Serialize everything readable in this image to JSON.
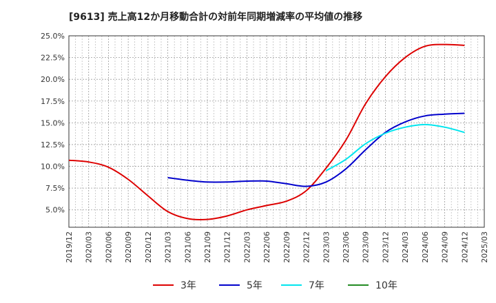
{
  "chart_data": {
    "type": "line",
    "title": "[9613]  売上高12か月移動合計の対前年同期増減率の平均値の推移",
    "xlabel": "",
    "ylabel": "",
    "ylim": [
      3.0,
      25.0
    ],
    "yticks": [
      "5.0%",
      "7.5%",
      "10.0%",
      "12.5%",
      "15.0%",
      "17.5%",
      "20.0%",
      "22.5%",
      "25.0%"
    ],
    "ytick_values": [
      5.0,
      7.5,
      10.0,
      12.5,
      15.0,
      17.5,
      20.0,
      22.5,
      25.0
    ],
    "xticks": [
      "2019/12",
      "2020/03",
      "2020/06",
      "2020/09",
      "2020/12",
      "2021/03",
      "2021/06",
      "2021/09",
      "2021/12",
      "2022/03",
      "2022/06",
      "2022/09",
      "2022/12",
      "2023/03",
      "2023/06",
      "2023/09",
      "2023/12",
      "2024/03",
      "2024/06",
      "2024/09",
      "2024/12",
      "2025/03"
    ],
    "grid": true,
    "legend_position": "bottom",
    "series": [
      {
        "name": "3年",
        "color": "#dd0000",
        "values": [
          10.7,
          10.5,
          9.9,
          8.5,
          6.6,
          4.8,
          4.0,
          3.9,
          4.3,
          5.0,
          5.5,
          6.0,
          7.2,
          9.8,
          13.0,
          17.2,
          20.3,
          22.5,
          23.8,
          24.0,
          23.9,
          null
        ]
      },
      {
        "name": "5年",
        "color": "#0000cc",
        "values": [
          null,
          null,
          null,
          null,
          null,
          8.7,
          8.4,
          8.2,
          8.2,
          8.3,
          8.3,
          8.0,
          7.7,
          8.2,
          9.7,
          11.9,
          13.9,
          15.1,
          15.8,
          16.0,
          16.1,
          null
        ]
      },
      {
        "name": "7年",
        "color": "#00e5ee",
        "values": [
          null,
          null,
          null,
          null,
          null,
          null,
          null,
          null,
          null,
          null,
          null,
          null,
          null,
          9.5,
          10.8,
          12.6,
          13.8,
          14.5,
          14.8,
          14.5,
          13.9,
          null
        ]
      },
      {
        "name": "10年",
        "color": "#228b22",
        "values": []
      }
    ]
  }
}
